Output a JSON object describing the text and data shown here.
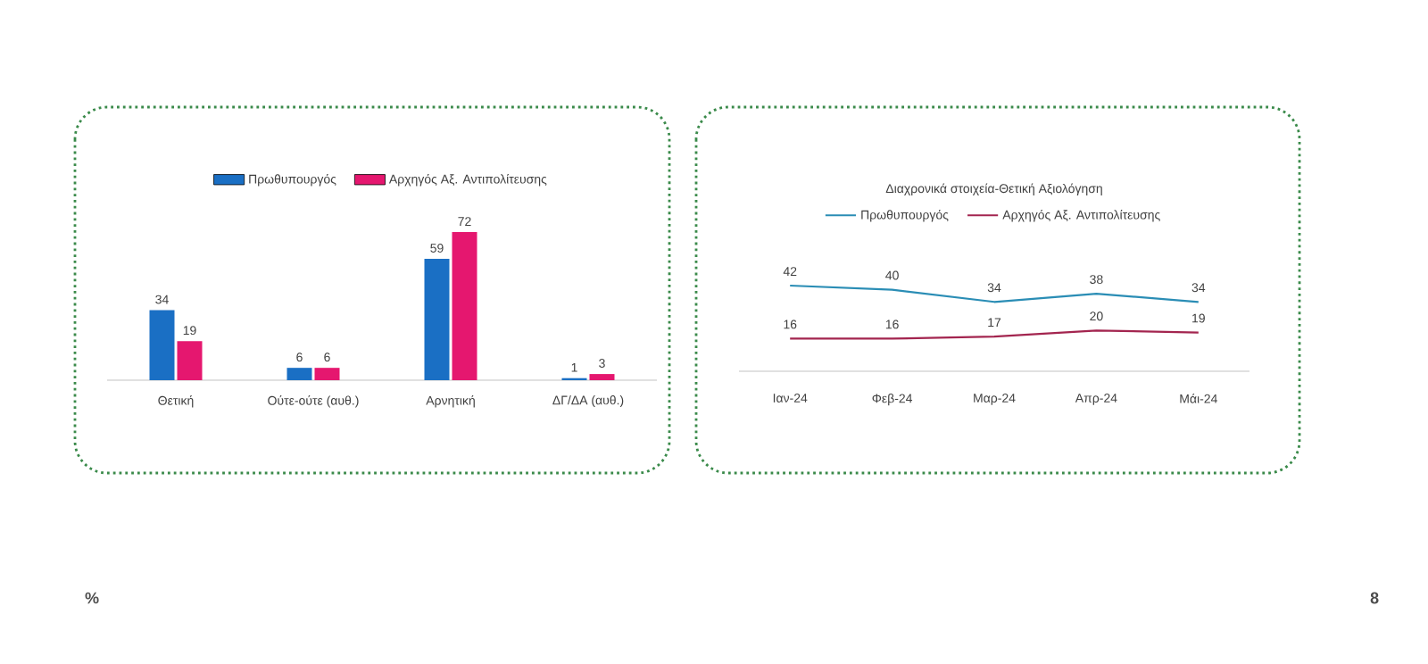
{
  "chart_data": [
    {
      "type": "bar",
      "categories": [
        "Θετική",
        "Ούτε-ούτε (αυθ.)",
        "Αρνητική",
        "ΔΓ/ΔΑ (αυθ.)"
      ],
      "series": [
        {
          "name": "Πρωθυπουργός",
          "color": "#1a6fc4",
          "values": [
            34,
            6,
            59,
            1
          ]
        },
        {
          "name": "Αρχηγός Αξ. Αντιπολίτευσης",
          "color": "#e5176f",
          "values": [
            19,
            6,
            72,
            3
          ]
        }
      ],
      "data_labels": true,
      "legend": "top",
      "annotations": [
        "%"
      ]
    },
    {
      "type": "line",
      "title": "Διαχρονικά στοιχεία-Θετική Αξιολόγηση",
      "categories": [
        "Ιαν-24",
        "Φεβ-24",
        "Μαρ-24",
        "Απρ-24",
        "Μάι-24"
      ],
      "series": [
        {
          "name": "Πρωθυπουργός",
          "color": "#2a8db5",
          "values": [
            42,
            40,
            34,
            38,
            34
          ]
        },
        {
          "name": "Αρχηγός Αξ. Αντιπολίτευσης",
          "color": "#a3254f",
          "values": [
            16,
            16,
            17,
            20,
            19
          ]
        }
      ],
      "data_labels": true,
      "legend": "top",
      "annotations": [
        "8"
      ]
    }
  ]
}
